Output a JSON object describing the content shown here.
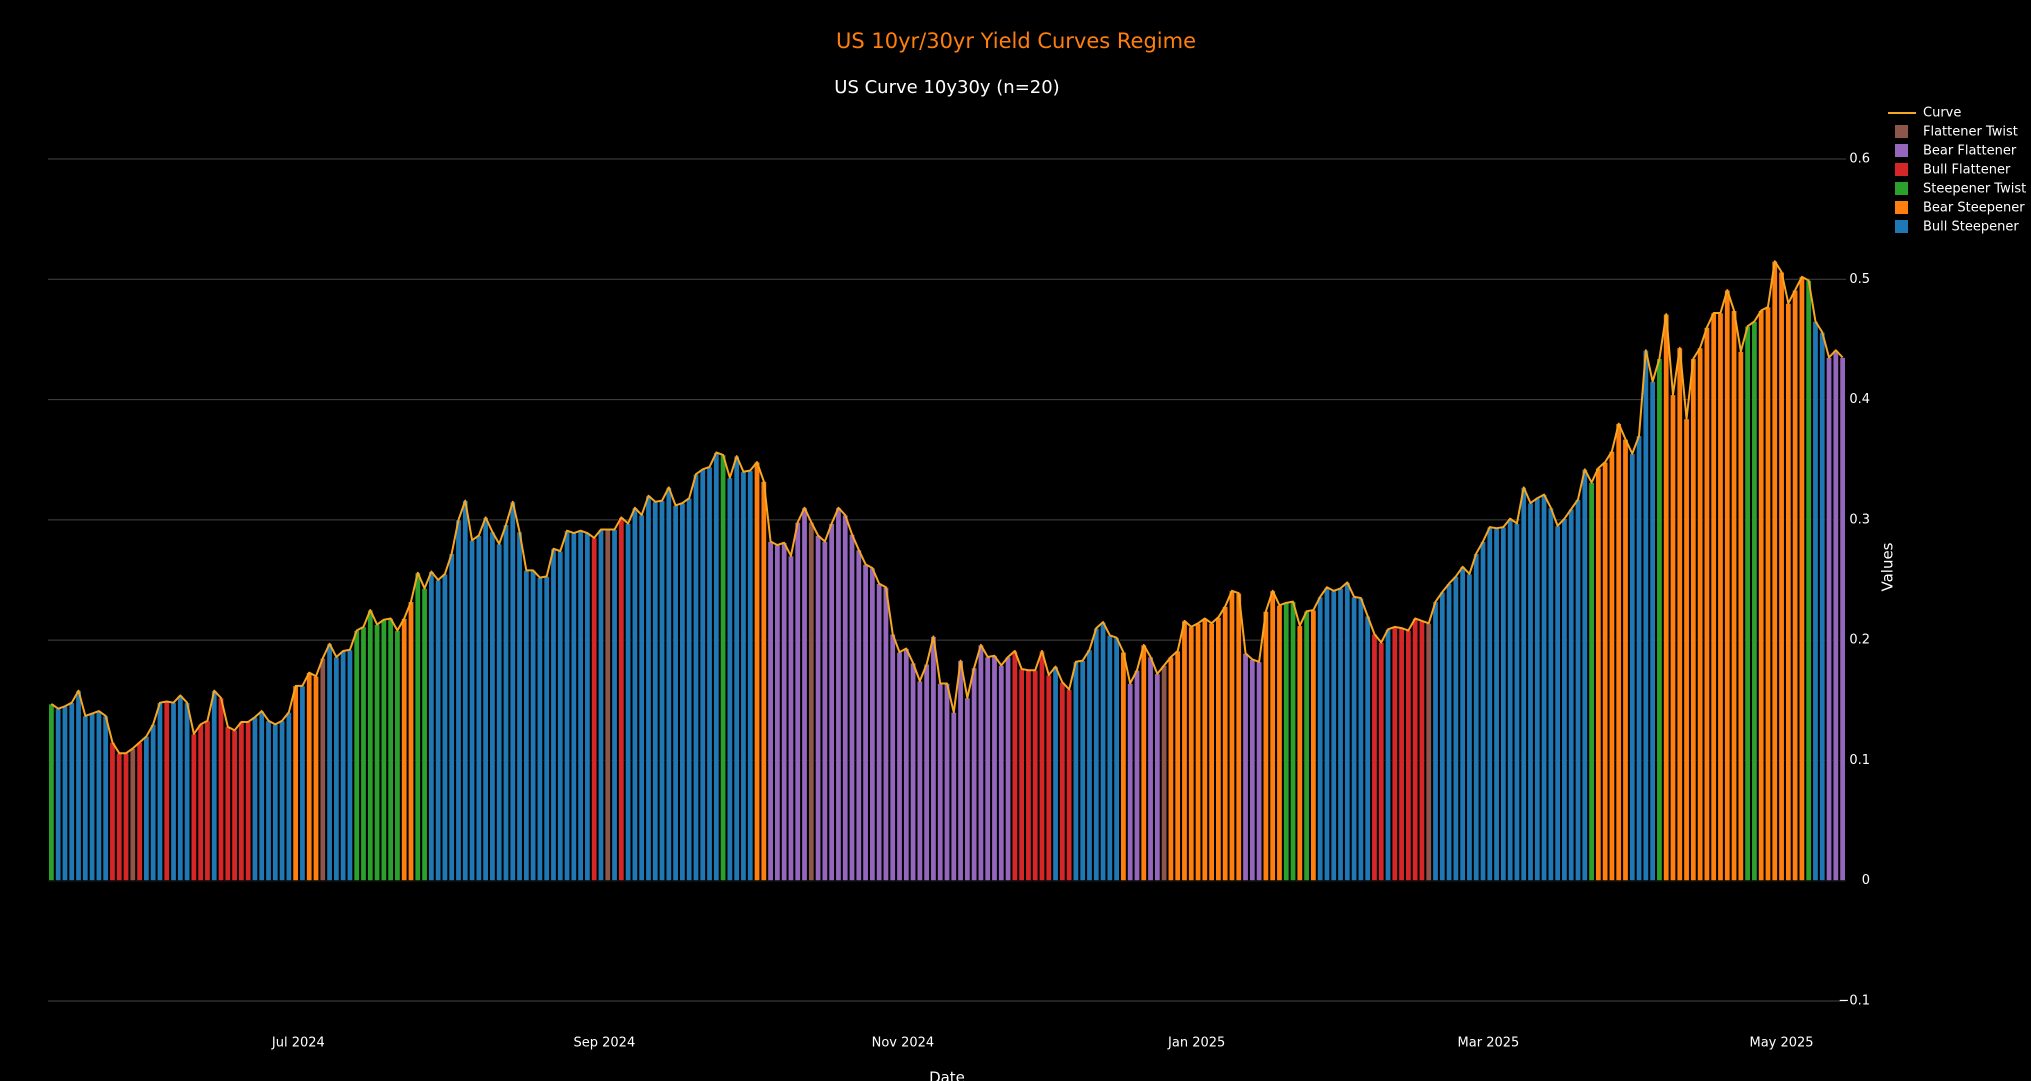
{
  "chart_data": {
    "type": "bar",
    "title": "US 10yr/30yr Yield Curves Regime",
    "subtitle": "US Curve 10y30y (n=20)",
    "x_label": "Date",
    "y_label": "Values",
    "legend": "top-right",
    "grid": true,
    "ylim": [
      -0.1,
      0.6
    ],
    "yticks": [
      {
        "value": -0.1,
        "label": "−0.1"
      },
      0,
      0.1,
      0.2,
      0.3,
      0.4,
      0.5,
      0.6
    ],
    "xlim": [
      -0.5,
      264.5
    ],
    "xticks": [
      {
        "value": 36.4,
        "label": "Jul 2024"
      },
      {
        "value": 81.5,
        "label": "Sep 2024"
      },
      {
        "value": 125.5,
        "label": "Nov 2024"
      },
      {
        "value": 168.8,
        "label": "Jan 2025"
      },
      {
        "value": 211.8,
        "label": "Mar 2025"
      },
      {
        "value": 255,
        "label": "May 2025"
      }
    ],
    "series": [
      {
        "name": "Curve",
        "color": "#f5a623",
        "values": [
          0.147,
          0.143,
          0.145,
          0.148,
          0.158,
          0.137,
          0.139,
          0.141,
          0.137,
          0.115,
          0.106,
          0.106,
          0.11,
          0.115,
          0.12,
          0.13,
          0.148,
          0.149,
          0.148,
          0.154,
          0.148,
          0.122,
          0.13,
          0.133,
          0.158,
          0.152,
          0.128,
          0.125,
          0.132,
          0.132,
          0.136,
          0.141,
          0.133,
          0.13,
          0.133,
          0.14,
          0.162,
          0.162,
          0.173,
          0.17,
          0.185,
          0.197,
          0.186,
          0.191,
          0.192,
          0.208,
          0.211,
          0.225,
          0.213,
          0.217,
          0.218,
          0.208,
          0.218,
          0.232,
          0.256,
          0.243,
          0.257,
          0.25,
          0.255,
          0.272,
          0.3,
          0.316,
          0.283,
          0.287,
          0.302,
          0.29,
          0.28,
          0.296,
          0.315,
          0.29,
          0.258,
          0.258,
          0.252,
          0.253,
          0.276,
          0.274,
          0.291,
          0.289,
          0.291,
          0.289,
          0.285,
          0.292,
          0.292,
          0.292,
          0.302,
          0.297,
          0.31,
          0.304,
          0.32,
          0.315,
          0.316,
          0.327,
          0.312,
          0.314,
          0.318,
          0.338,
          0.342,
          0.344,
          0.356,
          0.354,
          0.335,
          0.353,
          0.34,
          0.341,
          0.348,
          0.332,
          0.282,
          0.279,
          0.281,
          0.27,
          0.298,
          0.31,
          0.298,
          0.287,
          0.282,
          0.297,
          0.31,
          0.304,
          0.288,
          0.275,
          0.263,
          0.26,
          0.247,
          0.244,
          0.205,
          0.19,
          0.193,
          0.181,
          0.166,
          0.18,
          0.203,
          0.164,
          0.164,
          0.14,
          0.183,
          0.152,
          0.177,
          0.196,
          0.186,
          0.187,
          0.179,
          0.186,
          0.191,
          0.176,
          0.175,
          0.175,
          0.191,
          0.171,
          0.178,
          0.165,
          0.159,
          0.182,
          0.183,
          0.192,
          0.21,
          0.215,
          0.204,
          0.202,
          0.19,
          0.164,
          0.175,
          0.196,
          0.186,
          0.172,
          0.179,
          0.186,
          0.191,
          0.216,
          0.211,
          0.214,
          0.218,
          0.214,
          0.219,
          0.228,
          0.241,
          0.239,
          0.189,
          0.184,
          0.182,
          0.224,
          0.241,
          0.229,
          0.231,
          0.232,
          0.212,
          0.224,
          0.225,
          0.236,
          0.244,
          0.241,
          0.243,
          0.248,
          0.236,
          0.235,
          0.22,
          0.205,
          0.198,
          0.209,
          0.211,
          0.21,
          0.208,
          0.218,
          0.216,
          0.214,
          0.232,
          0.24,
          0.247,
          0.253,
          0.261,
          0.255,
          0.272,
          0.282,
          0.294,
          0.293,
          0.294,
          0.301,
          0.297,
          0.327,
          0.314,
          0.318,
          0.321,
          0.31,
          0.295,
          0.301,
          0.309,
          0.317,
          0.342,
          0.331,
          0.343,
          0.348,
          0.357,
          0.38,
          0.367,
          0.355,
          0.37,
          0.441,
          0.415,
          0.434,
          0.471,
          0.404,
          0.443,
          0.384,
          0.434,
          0.443,
          0.46,
          0.472,
          0.472,
          0.491,
          0.474,
          0.44,
          0.461,
          0.465,
          0.474,
          0.477,
          0.515,
          0.506,
          0.48,
          0.491,
          0.502,
          0.499,
          0.465,
          0.456,
          0.435,
          0.441,
          0.435
        ]
      },
      {
        "name": "Flattener Twist",
        "color": "#8c564b"
      },
      {
        "name": "Bear Flattener",
        "color": "#9467bd"
      },
      {
        "name": "Bull Flattener",
        "color": "#d62728"
      },
      {
        "name": "Steepener Twist",
        "color": "#2ca02c"
      },
      {
        "name": "Bear Steepener",
        "color": "#ff7f0e"
      },
      {
        "name": "Bull Steepener",
        "color": "#1f77b4"
      }
    ],
    "regime": [
      4,
      6,
      6,
      6,
      6,
      6,
      6,
      6,
      6,
      3,
      3,
      3,
      1,
      3,
      6,
      6,
      6,
      3,
      6,
      6,
      6,
      3,
      3,
      3,
      6,
      3,
      3,
      3,
      3,
      3,
      6,
      6,
      6,
      6,
      6,
      6,
      5,
      6,
      5,
      5,
      1,
      6,
      6,
      6,
      6,
      4,
      4,
      4,
      4,
      4,
      4,
      4,
      5,
      5,
      4,
      4,
      6,
      6,
      6,
      6,
      6,
      6,
      6,
      6,
      6,
      6,
      6,
      6,
      6,
      6,
      6,
      6,
      6,
      6,
      6,
      6,
      6,
      6,
      6,
      6,
      3,
      6,
      1,
      6,
      3,
      6,
      6,
      6,
      6,
      6,
      6,
      6,
      6,
      6,
      6,
      6,
      6,
      6,
      6,
      4,
      6,
      6,
      6,
      6,
      5,
      5,
      2,
      2,
      2,
      2,
      2,
      2,
      1,
      2,
      2,
      2,
      2,
      2,
      2,
      2,
      2,
      2,
      2,
      2,
      2,
      2,
      2,
      2,
      2,
      2,
      2,
      2,
      2,
      2,
      2,
      2,
      2,
      2,
      2,
      2,
      2,
      2,
      3,
      3,
      3,
      3,
      3,
      3,
      6,
      3,
      3,
      6,
      6,
      6,
      6,
      6,
      6,
      6,
      5,
      2,
      2,
      5,
      2,
      2,
      1,
      5,
      5,
      5,
      5,
      5,
      5,
      5,
      5,
      5,
      5,
      5,
      2,
      2,
      2,
      5,
      5,
      5,
      4,
      4,
      5,
      4,
      5,
      6,
      6,
      6,
      6,
      6,
      6,
      6,
      6,
      3,
      3,
      6,
      3,
      3,
      3,
      3,
      3,
      1,
      6,
      6,
      6,
      6,
      6,
      6,
      6,
      6,
      6,
      6,
      6,
      6,
      6,
      6,
      6,
      6,
      6,
      6,
      6,
      6,
      6,
      6,
      6,
      4,
      5,
      5,
      5,
      5,
      5,
      6,
      6,
      6,
      6,
      4,
      5,
      5,
      5,
      5,
      5,
      5,
      5,
      5,
      5,
      5,
      5,
      5,
      4,
      4,
      5,
      5,
      5,
      5,
      5,
      5,
      5,
      4,
      6,
      6,
      2,
      2,
      2
    ]
  }
}
